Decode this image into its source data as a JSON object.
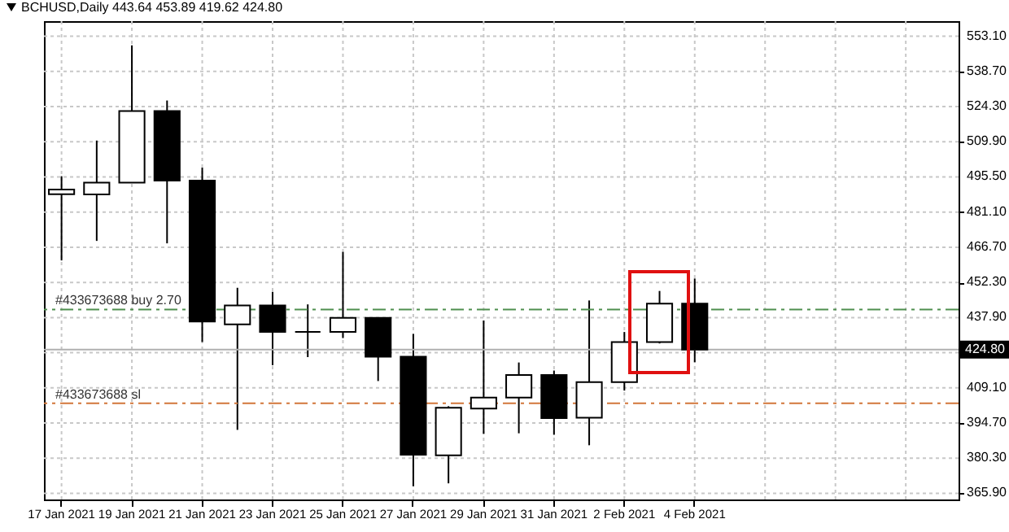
{
  "chart_data": {
    "type": "candlestick",
    "title": "BCHUSD,Daily 443.64 453.89 419.62 424.80",
    "categories": [
      "17 Jan 2021",
      null,
      "19 Jan 2021",
      null,
      "21 Jan 2021",
      null,
      "23 Jan 2021",
      null,
      "25 Jan 2021",
      null,
      "27 Jan 2021",
      null,
      "29 Jan 2021",
      null,
      "31 Jan 2021",
      null,
      "2 Feb 2021",
      null,
      "4 Feb 2021",
      null,
      null,
      null,
      null,
      null,
      null,
      null
    ],
    "ohlc": [
      [
        488.4,
        495.8,
        461.3,
        490.3
      ],
      [
        488.3,
        510.4,
        469.3,
        493.2
      ],
      [
        493.2,
        549.4,
        493.2,
        522.5
      ],
      [
        522.5,
        526.8,
        468.3,
        494.0
      ],
      [
        494.0,
        499.3,
        427.9,
        436.3
      ],
      [
        435.1,
        450.1,
        391.9,
        442.9
      ],
      [
        442.9,
        448.4,
        418.4,
        432.0
      ],
      [
        432.0,
        443.3,
        421.7,
        432.0
      ],
      [
        432.0,
        464.8,
        429.5,
        437.8
      ],
      [
        437.8,
        437.8,
        411.9,
        421.9
      ],
      [
        421.9,
        431.2,
        368.8,
        381.7
      ],
      [
        381.5,
        401.6,
        370.0,
        401.0
      ],
      [
        400.6,
        436.7,
        390.3,
        405.1
      ],
      [
        405.1,
        419.5,
        390.5,
        414.4
      ],
      [
        414.4,
        416.2,
        389.9,
        396.7
      ],
      [
        396.9,
        444.9,
        385.6,
        411.5
      ],
      [
        411.5,
        432.0,
        408.0,
        427.9
      ],
      [
        427.9,
        448.8,
        427.3,
        443.6
      ],
      [
        443.64,
        453.89,
        419.62,
        424.8
      ],
      null,
      null,
      null,
      null,
      null,
      null,
      null
    ],
    "ylim": [
      363.4,
      559.3
    ],
    "yticks": [
      {
        "value": 365.9,
        "label": "365.90"
      },
      {
        "value": 380.3,
        "label": "380.30"
      },
      {
        "value": 394.7,
        "label": "394.70"
      },
      {
        "value": 409.1,
        "label": "409.10"
      },
      {
        "value": 423.5,
        "label": null
      },
      {
        "value": 437.9,
        "label": "437.90"
      },
      {
        "value": 452.3,
        "label": "452.30"
      },
      {
        "value": 466.7,
        "label": "466.70"
      },
      {
        "value": 481.1,
        "label": "481.10"
      },
      {
        "value": 495.5,
        "label": "495.50"
      },
      {
        "value": 509.9,
        "label": "509.90"
      },
      {
        "value": 524.3,
        "label": "524.30"
      },
      {
        "value": 538.7,
        "label": "538.70"
      },
      {
        "value": 553.1,
        "label": "553.10"
      }
    ],
    "grid": true,
    "ref_lines": [
      {
        "axis": "y",
        "value": 441.2,
        "label": "#433673688 buy 2.70",
        "color": "#4f8f4f",
        "line_style": "dashed"
      },
      {
        "axis": "y",
        "value": 402.8,
        "label": "#433673688 sl",
        "color": "#d2773a",
        "line_style": "dashed"
      },
      {
        "axis": "y",
        "value": 424.8,
        "label": "424.80",
        "color": "#b0b0b0",
        "line_style": "solid"
      }
    ]
  }
}
